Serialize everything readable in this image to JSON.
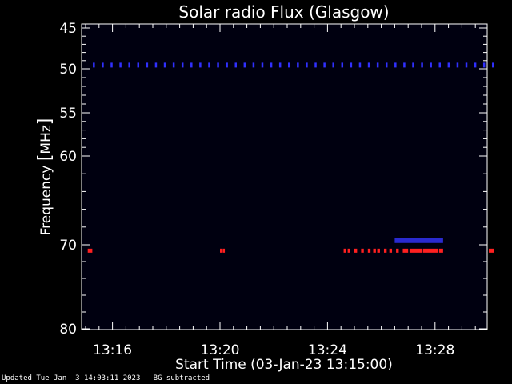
{
  "chart_data": {
    "type": "heatmap",
    "title": "Solar radio Flux (Glasgow)",
    "xlabel": "Start Time (03-Jan-23 13:15:00)",
    "ylabel_text": "Frequency ",
    "ylabel_unit": "MHz",
    "xlim_minutes": [
      0,
      15.3
    ],
    "ylim": [
      45,
      80
    ],
    "x_ticks": [
      {
        "label": "13:16",
        "minute": 1
      },
      {
        "label": "13:20",
        "minute": 5
      },
      {
        "label": "13:24",
        "minute": 9
      },
      {
        "label": "13:28",
        "minute": 13
      }
    ],
    "y_ticks": [
      {
        "label": "45",
        "value": 45
      },
      {
        "label": "50",
        "value": 50
      },
      {
        "label": "55",
        "value": 55
      },
      {
        "label": "60",
        "value": 60
      },
      {
        "label": "70",
        "value": 70
      },
      {
        "label": "80",
        "value": 80
      }
    ],
    "background_color": "#000010",
    "bright_emission_band": {
      "frequency": 70.7,
      "color": "#ff2020",
      "segments_minutes": [
        [
          0.08,
          0.25
        ],
        [
          5.0,
          5.05
        ],
        [
          5.1,
          5.18
        ],
        [
          9.6,
          9.7
        ],
        [
          9.75,
          9.85
        ],
        [
          10.0,
          10.1
        ],
        [
          10.25,
          10.35
        ],
        [
          10.5,
          10.6
        ],
        [
          10.7,
          10.8
        ],
        [
          10.85,
          10.95
        ],
        [
          11.1,
          11.2
        ],
        [
          11.3,
          11.4
        ],
        [
          11.55,
          11.65
        ],
        [
          11.8,
          12.0
        ],
        [
          12.05,
          12.5
        ],
        [
          12.55,
          13.1
        ],
        [
          13.15,
          13.3
        ],
        [
          15.0,
          15.2
        ]
      ]
    },
    "interference_band": {
      "frequency": 49.5,
      "color": "#3030ff",
      "spacing_minutes": 0.33
    },
    "faint_band": {
      "frequency_range": [
        69.2,
        69.8
      ],
      "color": "#2a2ad0",
      "range_minutes": [
        11.5,
        13.3
      ]
    }
  },
  "footer": {
    "updated": "Updated Tue Jan  3 14:03:11 2023   BG subtracted"
  }
}
